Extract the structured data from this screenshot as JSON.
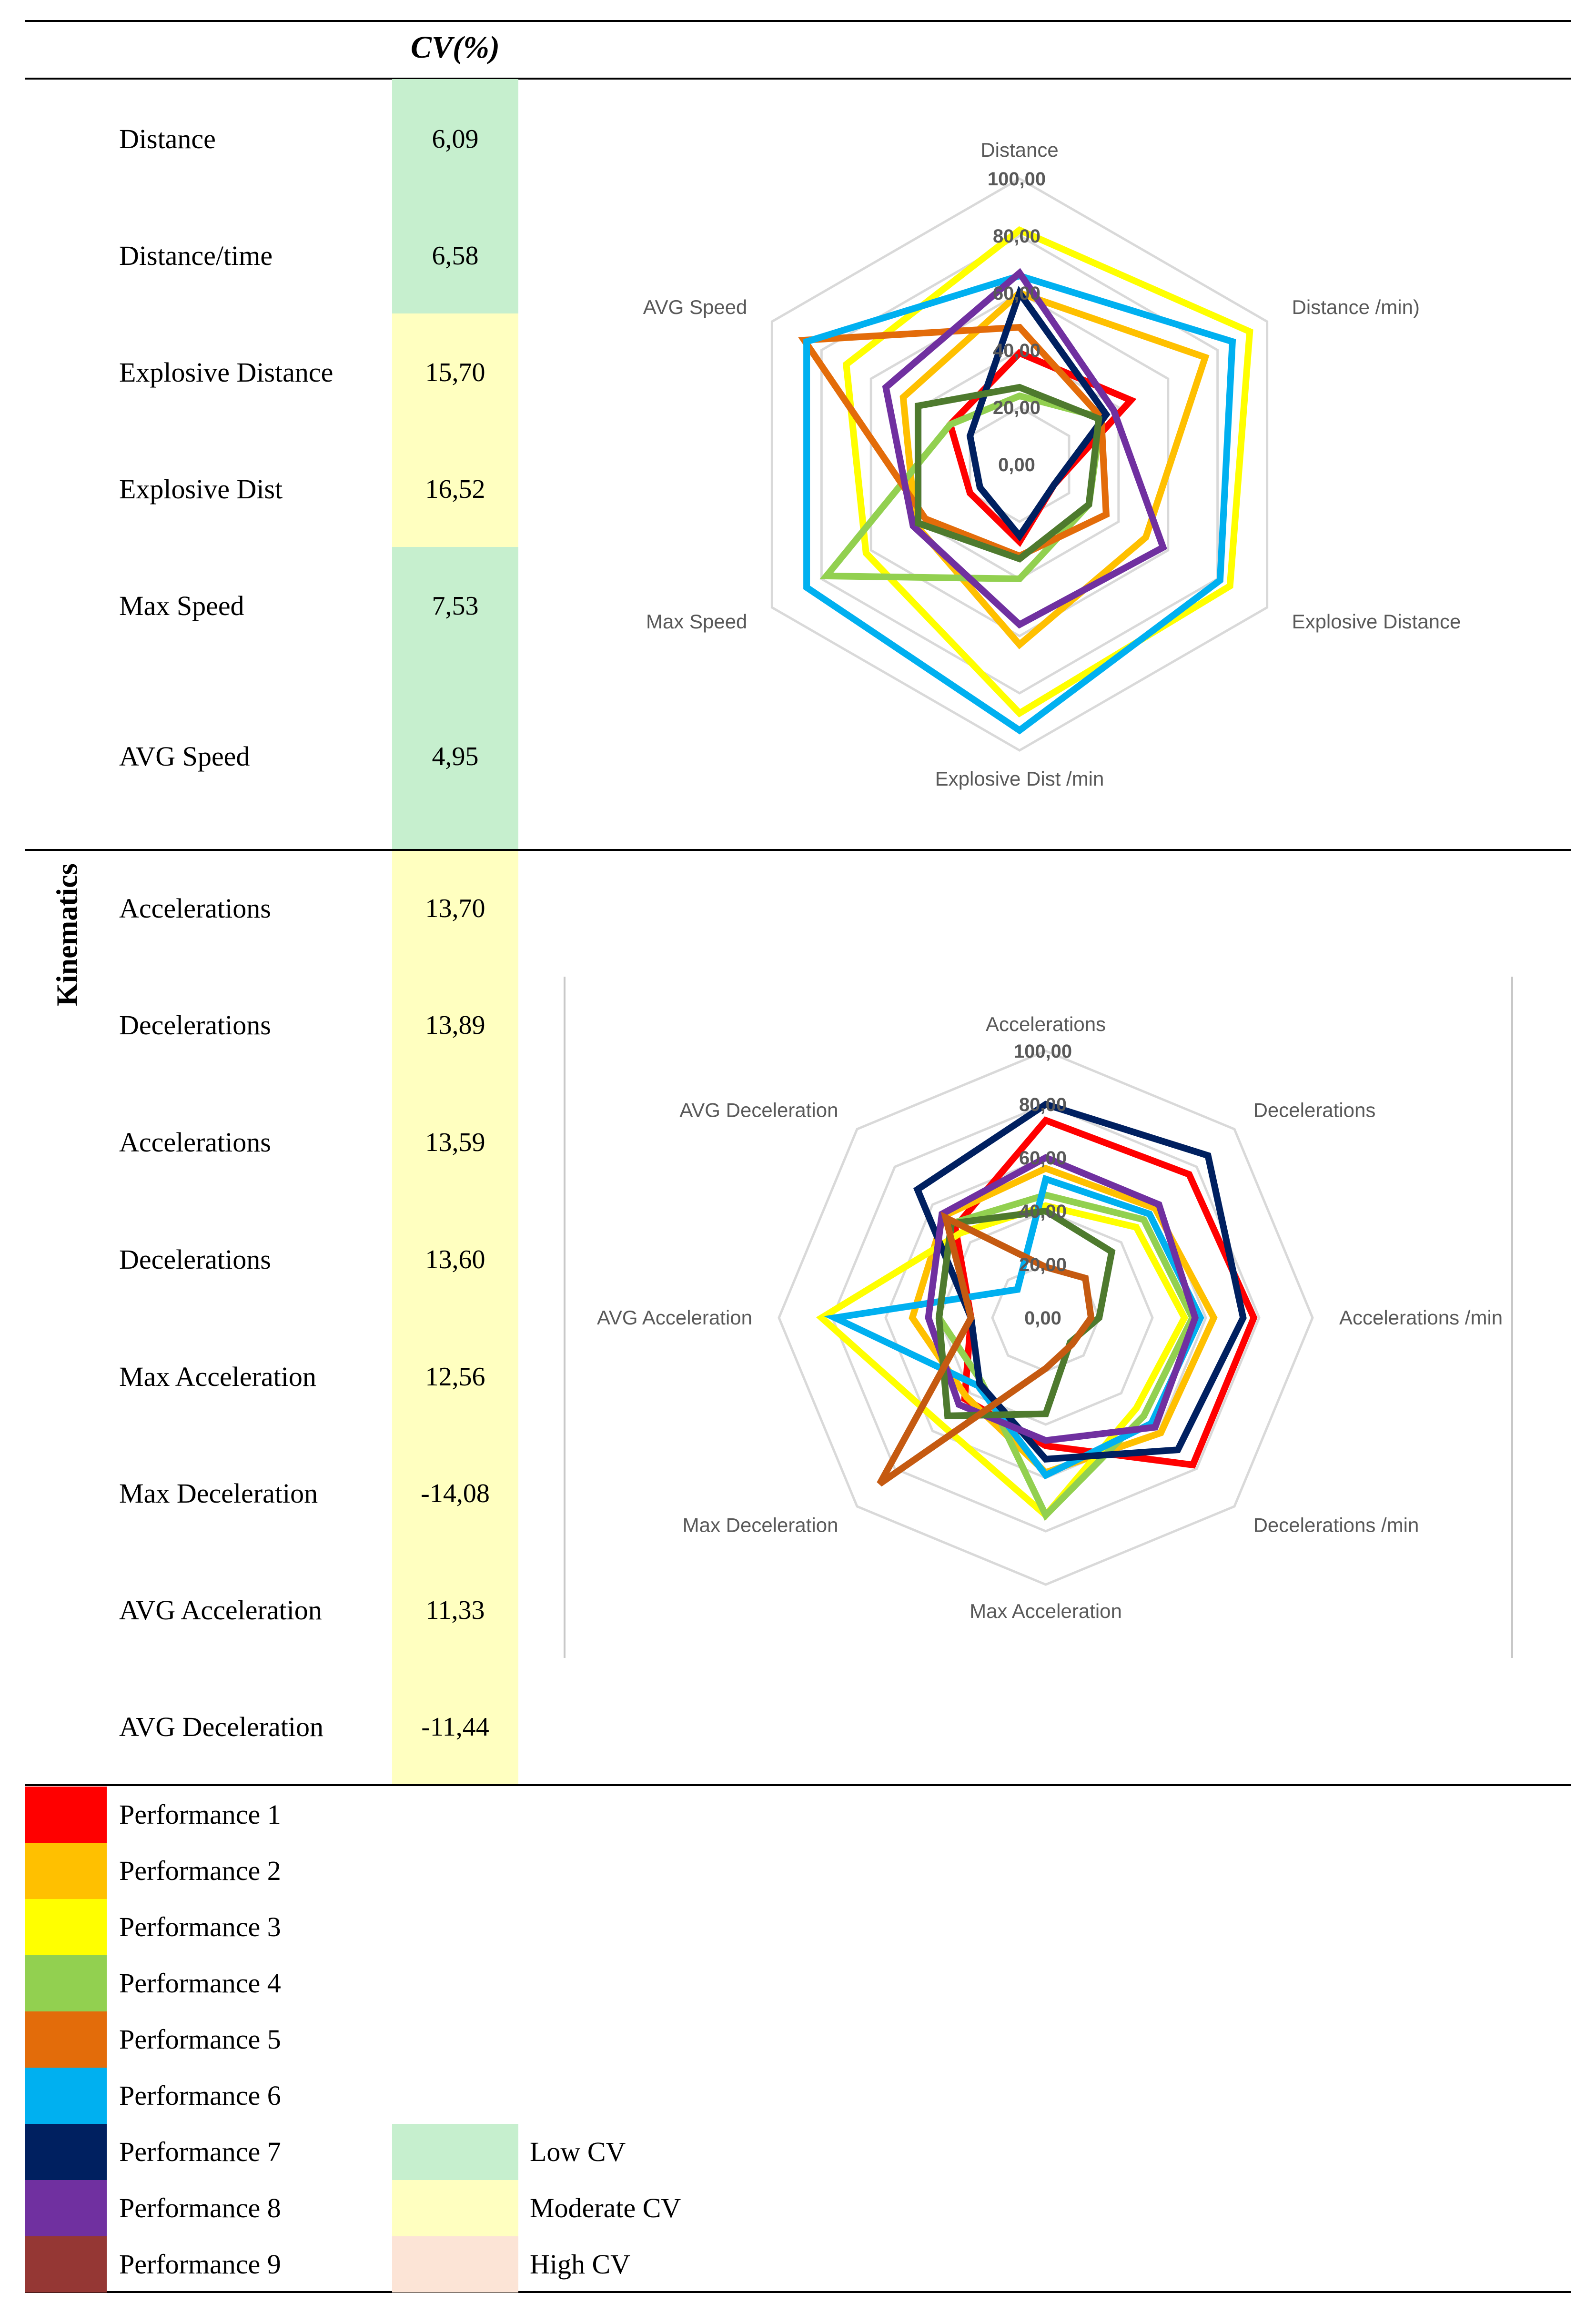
{
  "table": {
    "header_cv": "CV(%)",
    "side_label": "Kinematics",
    "rows": [
      {
        "label": "Distance",
        "value": "6,09",
        "level": "low"
      },
      {
        "label": "Distance/time",
        "value": "6,58",
        "level": "low"
      },
      {
        "label": "Explosive Distance",
        "value": "15,70",
        "level": "moderate"
      },
      {
        "label": "Explosive Dist",
        "value": "16,52",
        "level": "moderate"
      },
      {
        "label": "Max Speed",
        "value": "7,53",
        "level": "low"
      },
      {
        "label": "AVG Speed",
        "value": "4,95",
        "level": "low"
      },
      {
        "label": "Accelerations",
        "value": "13,70",
        "level": "moderate"
      },
      {
        "label": "Decelerations",
        "value": "13,89",
        "level": "moderate"
      },
      {
        "label": "Accelerations",
        "value": "13,59",
        "level": "moderate"
      },
      {
        "label": "Decelerations",
        "value": "13,60",
        "level": "moderate"
      },
      {
        "label": "Max Acceleration",
        "value": "12,56",
        "level": "moderate"
      },
      {
        "label": "Max Deceleration",
        "value": "-14,08",
        "level": "moderate"
      },
      {
        "label": "AVG Acceleration",
        "value": "11,33",
        "level": "moderate"
      },
      {
        "label": "AVG Deceleration",
        "value": "-11,44",
        "level": "moderate"
      }
    ]
  },
  "cv_colors": {
    "low": "#c6efce",
    "moderate": "#ffffc0",
    "high": "#fce4d6"
  },
  "legend": {
    "performances": [
      {
        "label": "Performance 1",
        "color": "#ff0000"
      },
      {
        "label": "Performance 2",
        "color": "#ffc000"
      },
      {
        "label": "Performance 3",
        "color": "#ffff00"
      },
      {
        "label": "Performance 4",
        "color": "#92d050"
      },
      {
        "label": "Performance 5",
        "color": "#e36c0a"
      },
      {
        "label": "Performance 6",
        "color": "#00b0f0"
      },
      {
        "label": "Performance 7",
        "color": "#002060"
      },
      {
        "label": "Performance 8",
        "color": "#7030a0"
      },
      {
        "label": "Performance 9",
        "color": "#953734"
      }
    ],
    "cv_levels": [
      {
        "label": "Low CV",
        "color": "#c6efce"
      },
      {
        "label": "Moderate CV",
        "color": "#ffffc0"
      },
      {
        "label": "High CV",
        "color": "#fce4d6"
      }
    ]
  },
  "chart_data": [
    {
      "type": "radar",
      "axes": [
        "Distance",
        "Distance /min)",
        "Explosive Distance",
        "Explosive Dist  /min",
        "Max Speed",
        "AVG Speed"
      ],
      "range": [
        0,
        100
      ],
      "ticks": [
        "0,00",
        "20,00",
        "40,00",
        "60,00",
        "80,00",
        "100,00"
      ],
      "series": [
        {
          "color": "#ff0000",
          "values": [
            39,
            45,
            14,
            27,
            20,
            28
          ]
        },
        {
          "color": "#ffc000",
          "values": [
            60,
            75,
            51,
            63,
            42,
            47
          ]
        },
        {
          "color": "#ffff00",
          "values": [
            82,
            93,
            85,
            87,
            62,
            70
          ]
        },
        {
          "color": "#92d050",
          "values": [
            24,
            33,
            28,
            40,
            78,
            28
          ]
        },
        {
          "color": "#e36c0a",
          "values": [
            48,
            33,
            35,
            32,
            38,
            87
          ]
        },
        {
          "color": "#00b0f0",
          "values": [
            66,
            86,
            81,
            93,
            86,
            86
          ]
        },
        {
          "color": "#002060",
          "values": [
            60,
            35,
            14,
            25,
            16,
            20
          ]
        },
        {
          "color": "#7030a0",
          "values": [
            67,
            38,
            58,
            56,
            43,
            54
          ]
        },
        {
          "color": "#4e7a2e",
          "values": [
            27,
            32,
            28,
            33,
            41,
            41
          ]
        }
      ]
    },
    {
      "type": "radar",
      "axes": [
        "Accelerations",
        "Decelerations",
        "Accelerations /min",
        "Decelerations /min",
        "Max Acceleration",
        "Max Deceleration",
        "AVG Acceleration",
        "AVG Deceleration"
      ],
      "range": [
        0,
        100
      ],
      "ticks": [
        "0,00",
        "20,00",
        "40,00",
        "60,00",
        "80,00",
        "100,00"
      ],
      "series": [
        {
          "color": "#ff0000",
          "values": [
            74,
            76,
            78,
            78,
            48,
            43,
            28,
            48
          ]
        },
        {
          "color": "#ffc000",
          "values": [
            56,
            58,
            63,
            61,
            58,
            42,
            50,
            54
          ]
        },
        {
          "color": "#ffff00",
          "values": [
            42,
            48,
            52,
            48,
            74,
            56,
            84,
            45
          ]
        },
        {
          "color": "#92d050",
          "values": [
            46,
            52,
            55,
            52,
            74,
            34,
            40,
            50
          ]
        },
        {
          "color": "#00b0f0",
          "values": [
            52,
            55,
            58,
            56,
            59,
            36,
            79,
            15
          ]
        },
        {
          "color": "#002060",
          "values": [
            80,
            86,
            74,
            70,
            53,
            35,
            28,
            68
          ]
        },
        {
          "color": "#7030a0",
          "values": [
            60,
            60,
            56,
            58,
            46,
            46,
            44,
            55
          ]
        },
        {
          "color": "#4e7a2e",
          "values": [
            40,
            35,
            20,
            13,
            36,
            52,
            40,
            50
          ]
        },
        {
          "color": "#c55a11",
          "values": [
            19,
            21,
            17,
            14,
            19,
            88,
            28,
            53
          ]
        }
      ]
    }
  ]
}
